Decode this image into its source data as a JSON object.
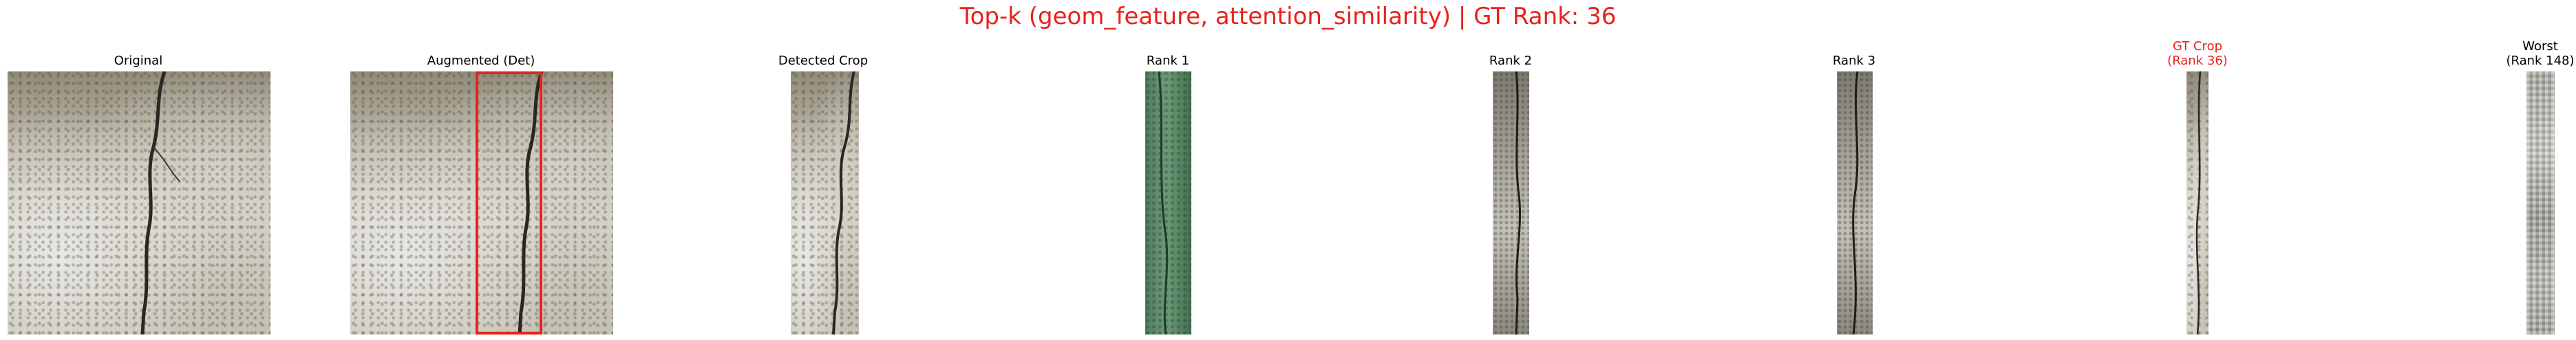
{
  "figure": {
    "suptitle": "Top-k (geom_feature, attention_similarity) | GT Rank: 36",
    "panels": [
      {
        "title": "Original",
        "image": "concrete-crack-photo",
        "highlight": false
      },
      {
        "title": "Augmented (Det)",
        "image": "concrete-crack-photo-with-detection-box",
        "highlight": false
      },
      {
        "title": "Detected Crop",
        "image": "crack-crop",
        "highlight": false
      },
      {
        "title": "Rank 1",
        "image": "green-surface-crop",
        "highlight": false
      },
      {
        "title": "Rank 2",
        "image": "crack-crop",
        "highlight": false
      },
      {
        "title": "Rank 3",
        "image": "crack-crop",
        "highlight": false
      },
      {
        "title_line1": "GT Crop",
        "title_line2": "(Rank 36)",
        "image": "crack-crop",
        "highlight": true
      },
      {
        "title_line1": "Worst",
        "title_line2": "(Rank 148)",
        "image": "low-resolution-crop",
        "highlight": false
      }
    ]
  },
  "colors": {
    "title_red": "#e8211d",
    "detection_box": "#e8211d",
    "text": "#000000",
    "background": "#ffffff"
  }
}
